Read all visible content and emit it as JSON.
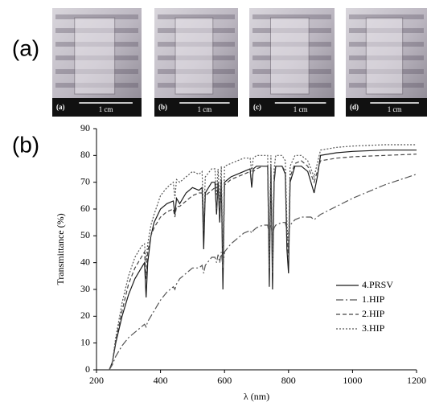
{
  "figure": {
    "label_a": "(a)",
    "label_b": "(b)",
    "photos": [
      {
        "label": "(a)",
        "scale": "1 cm"
      },
      {
        "label": "(b)",
        "scale": "1 cm"
      },
      {
        "label": "(c)",
        "scale": "1 cm"
      },
      {
        "label": "(d)",
        "scale": "1 cm"
      }
    ]
  },
  "chart_data": {
    "type": "line",
    "xlabel": "λ (nm)",
    "ylabel": "Transmittance (%)",
    "xlim": [
      200,
      1200
    ],
    "ylim": [
      0,
      90
    ],
    "xticks": [
      200,
      400,
      600,
      800,
      1000,
      1200
    ],
    "yticks": [
      0,
      10,
      20,
      30,
      40,
      50,
      60,
      70,
      80,
      90
    ],
    "legend": "right",
    "x": [
      240,
      250,
      260,
      280,
      300,
      320,
      340,
      350,
      355,
      360,
      370,
      380,
      400,
      420,
      440,
      445,
      450,
      460,
      480,
      500,
      520,
      530,
      535,
      540,
      560,
      570,
      575,
      580,
      585,
      590,
      595,
      600,
      620,
      640,
      660,
      680,
      685,
      690,
      700,
      720,
      735,
      740,
      745,
      750,
      755,
      760,
      780,
      790,
      795,
      800,
      805,
      820,
      840,
      860,
      870,
      880,
      890,
      900,
      950,
      1000,
      1100,
      1200
    ],
    "series": [
      {
        "name": "4.PRSV",
        "color": "#1a1a1a",
        "dash": "none",
        "values": [
          0,
          3,
          10,
          20,
          28,
          34,
          38,
          40,
          27,
          40,
          50,
          55,
          60,
          62,
          63,
          58,
          64,
          62,
          66,
          68,
          67,
          68,
          45,
          66,
          70,
          70,
          58,
          70,
          55,
          71,
          30,
          70,
          72,
          73,
          74,
          75,
          68,
          75,
          76,
          76,
          76,
          31,
          76,
          30,
          70,
          76,
          76,
          73,
          45,
          36,
          70,
          76,
          76,
          74,
          70,
          66,
          72,
          80,
          81,
          81.5,
          82,
          82
        ]
      },
      {
        "name": "1.HIP",
        "color": "#555555",
        "dash": "9,3,2,3",
        "values": [
          0,
          2,
          5,
          9,
          12,
          14,
          16,
          17,
          16,
          18,
          20,
          22,
          26,
          29,
          31,
          30,
          32,
          34,
          36,
          38,
          38,
          39,
          36,
          39,
          42,
          42,
          40,
          43,
          40,
          44,
          38,
          44,
          47,
          49,
          51,
          52,
          51,
          52,
          53,
          54,
          54,
          50,
          54,
          50,
          53,
          54,
          55,
          55,
          52,
          51,
          54,
          56,
          57,
          57,
          57,
          56,
          57,
          58,
          61,
          64,
          69,
          73
        ]
      },
      {
        "name": "2.HIP",
        "color": "#444444",
        "dash": "5,3",
        "values": [
          0,
          3,
          11,
          22,
          32,
          38,
          42,
          44,
          34,
          44,
          50,
          53,
          57,
          59,
          60,
          57,
          61,
          61,
          63,
          65,
          66,
          66,
          52,
          65,
          67,
          68,
          60,
          68,
          58,
          69,
          40,
          69,
          71,
          72,
          73,
          74,
          70,
          74,
          75,
          76,
          76,
          38,
          76,
          37,
          72,
          76,
          76,
          74,
          50,
          42,
          72,
          77,
          78,
          76,
          73,
          70,
          74,
          78,
          79,
          79.5,
          80,
          80.5
        ]
      },
      {
        "name": "3.HIP",
        "color": "#555555",
        "dash": "2,2",
        "values": [
          0,
          3,
          12,
          25,
          35,
          42,
          46,
          47,
          40,
          47,
          54,
          58,
          65,
          68,
          70,
          64,
          71,
          70,
          72,
          74,
          73,
          74,
          55,
          72,
          75,
          75,
          65,
          75,
          62,
          76,
          40,
          76,
          77,
          78,
          79,
          79,
          74,
          79,
          80,
          80,
          80,
          38,
          80,
          36,
          75,
          80,
          80,
          78,
          55,
          45,
          76,
          80,
          80,
          78,
          75,
          72,
          77,
          82,
          83,
          83.5,
          84,
          84
        ]
      }
    ]
  }
}
